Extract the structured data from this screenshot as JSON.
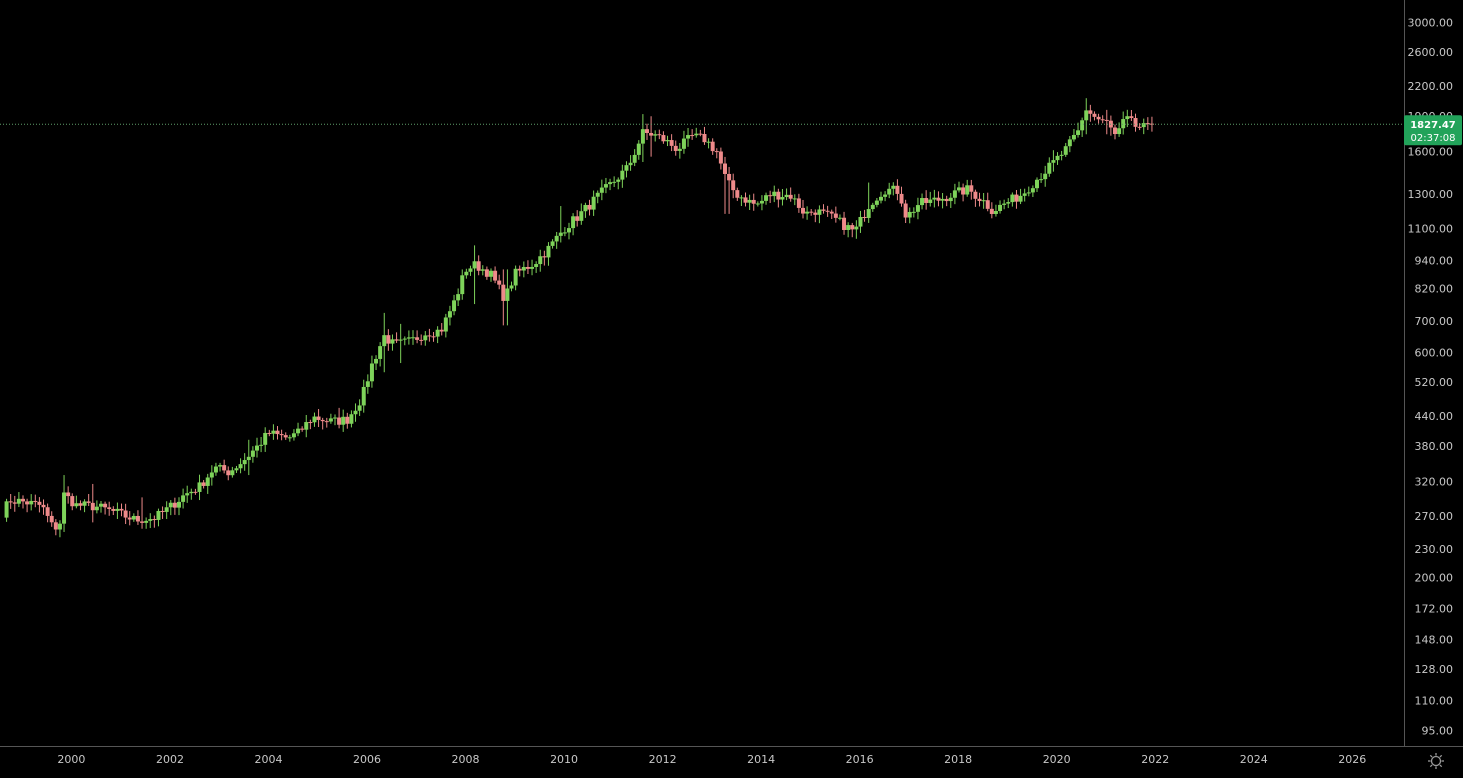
{
  "chart_data": {
    "type": "candlestick",
    "title": "",
    "xlabel": "",
    "ylabel": "",
    "y_scale": "log",
    "grid": false,
    "x_range": [
      1998.55,
      2027.05
    ],
    "y_range": [
      88,
      3350
    ],
    "x_tick_labels": [
      "2000",
      "2002",
      "2004",
      "2006",
      "2008",
      "2010",
      "2012",
      "2014",
      "2016",
      "2018",
      "2020",
      "2022",
      "2024",
      "2026"
    ],
    "y_tick_labels": [
      "3000.00",
      "2600.00",
      "2200.00",
      "1900.00",
      "1600.00",
      "1300.00",
      "1100.00",
      "940.00",
      "820.00",
      "700.00",
      "600.00",
      "520.00",
      "440.00",
      "380.00",
      "320.00",
      "270.00",
      "230.00",
      "200.00",
      "172.00",
      "148.00",
      "128.00",
      "110.00",
      "95.00"
    ],
    "last_price": "1827.47",
    "countdown": "02:37:08",
    "colors": {
      "background": "#000000",
      "up": "#7ed35a",
      "down": "#ee8a8a",
      "price_tag": "#22a35a",
      "price_line": "#5e9e6a",
      "axis_text": "#c8c8c8",
      "axis_line": "#555555"
    },
    "anchors": [
      [
        1998.6,
        275
      ],
      [
        1998.75,
        292
      ],
      [
        1999.0,
        290
      ],
      [
        1999.4,
        284
      ],
      [
        1999.6,
        258
      ],
      [
        1999.75,
        255
      ],
      [
        1999.85,
        300
      ],
      [
        2000.1,
        285
      ],
      [
        2000.5,
        283
      ],
      [
        2000.9,
        275
      ],
      [
        2001.3,
        265
      ],
      [
        2001.7,
        268
      ],
      [
        2002.0,
        282
      ],
      [
        2002.3,
        300
      ],
      [
        2002.6,
        312
      ],
      [
        2002.9,
        342
      ],
      [
        2003.2,
        335
      ],
      [
        2003.5,
        355
      ],
      [
        2003.8,
        382
      ],
      [
        2004.0,
        405
      ],
      [
        2004.4,
        395
      ],
      [
        2004.6,
        405
      ],
      [
        2004.9,
        438
      ],
      [
        2005.3,
        428
      ],
      [
        2005.6,
        433
      ],
      [
        2005.9,
        482
      ],
      [
        2006.1,
        565
      ],
      [
        2006.35,
        650
      ],
      [
        2006.55,
        622
      ],
      [
        2006.9,
        635
      ],
      [
        2007.2,
        662
      ],
      [
        2007.5,
        668
      ],
      [
        2007.8,
        780
      ],
      [
        2008.0,
        900
      ],
      [
        2008.2,
        920
      ],
      [
        2008.5,
        882
      ],
      [
        2008.8,
        780
      ],
      [
        2009.0,
        880
      ],
      [
        2009.4,
        930
      ],
      [
        2009.7,
        1000
      ],
      [
        2010.0,
        1100
      ],
      [
        2010.3,
        1170
      ],
      [
        2010.7,
        1290
      ],
      [
        2011.0,
        1380
      ],
      [
        2011.3,
        1480
      ],
      [
        2011.6,
        1750
      ],
      [
        2011.8,
        1740
      ],
      [
        2012.0,
        1700
      ],
      [
        2012.3,
        1620
      ],
      [
        2012.6,
        1720
      ],
      [
        2012.85,
        1700
      ],
      [
        2013.1,
        1600
      ],
      [
        2013.3,
        1380
      ],
      [
        2013.5,
        1300
      ],
      [
        2013.9,
        1230
      ],
      [
        2014.2,
        1300
      ],
      [
        2014.6,
        1290
      ],
      [
        2014.9,
        1180
      ],
      [
        2015.1,
        1200
      ],
      [
        2015.5,
        1150
      ],
      [
        2015.9,
        1080
      ],
      [
        2016.2,
        1240
      ],
      [
        2016.5,
        1330
      ],
      [
        2016.8,
        1320
      ],
      [
        2016.95,
        1160
      ],
      [
        2017.2,
        1240
      ],
      [
        2017.6,
        1265
      ],
      [
        2017.9,
        1300
      ],
      [
        2018.2,
        1330
      ],
      [
        2018.5,
        1260
      ],
      [
        2018.7,
        1200
      ],
      [
        2018.95,
        1240
      ],
      [
        2019.3,
        1300
      ],
      [
        2019.6,
        1400
      ],
      [
        2019.9,
        1500
      ],
      [
        2020.2,
        1620
      ],
      [
        2020.45,
        1770
      ],
      [
        2020.6,
        1970
      ],
      [
        2020.8,
        1880
      ],
      [
        2021.0,
        1850
      ],
      [
        2021.2,
        1720
      ],
      [
        2021.4,
        1880
      ],
      [
        2021.6,
        1810
      ],
      [
        2021.85,
        1790
      ],
      [
        2021.95,
        1827.47
      ]
    ],
    "spikes": [
      [
        1999.87,
        330,
        250
      ],
      [
        2000.4,
        316,
        262
      ],
      [
        2001.4,
        296,
        254
      ],
      [
        2003.6,
        392,
        330
      ],
      [
        2005.4,
        458,
        415
      ],
      [
        2006.38,
        728,
        545
      ],
      [
        2006.7,
        690,
        570
      ],
      [
        2008.18,
        1012,
        760
      ],
      [
        2008.8,
        900,
        685
      ],
      [
        2009.95,
        1226,
        1040
      ],
      [
        2011.6,
        1920,
        1520
      ],
      [
        2011.75,
        1900,
        1560
      ],
      [
        2013.3,
        1420,
        1180
      ],
      [
        2015.95,
        1130,
        1045
      ],
      [
        2016.2,
        1375,
        1180
      ],
      [
        2019.9,
        1610,
        1450
      ],
      [
        2020.63,
        2075,
        1740
      ],
      [
        2021.0,
        1960,
        1740
      ]
    ]
  }
}
